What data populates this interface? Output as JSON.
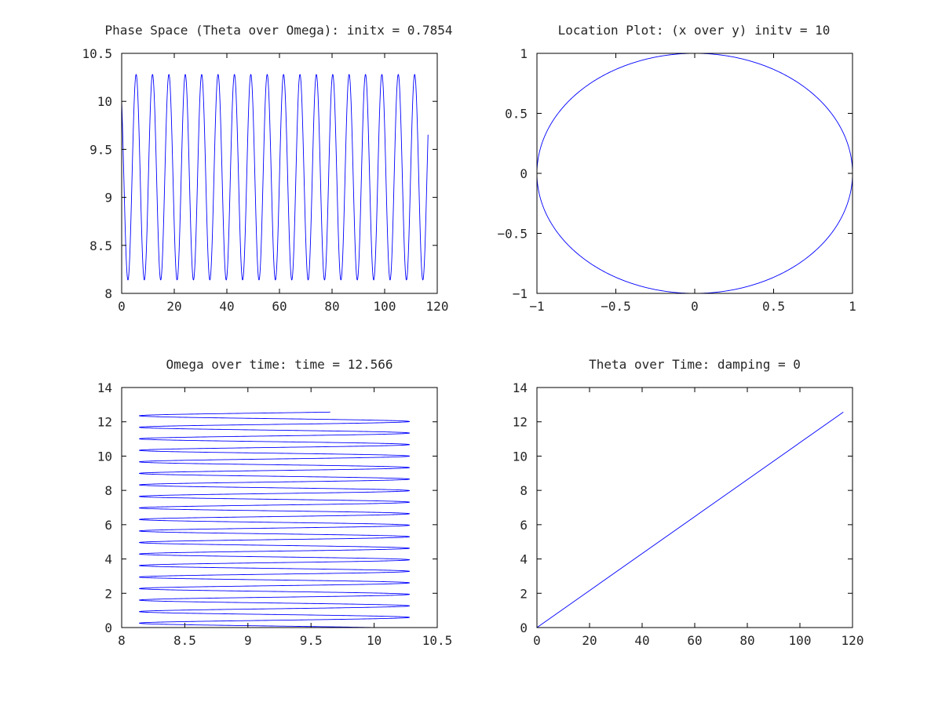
{
  "colors": {
    "series": "#0000ff",
    "axes": "#000000",
    "text": "#262626"
  },
  "chart_data": [
    {
      "id": "phase-space",
      "type": "line",
      "title": "Phase Space (Theta over Omega): initx = 0.7854",
      "xlabel": "",
      "ylabel": "",
      "xlim": [
        0,
        120
      ],
      "ylim": [
        8,
        10.5
      ],
      "xticks": [
        0,
        20,
        40,
        60,
        80,
        100,
        120
      ],
      "xtick_labels": [
        "0",
        "20",
        "40",
        "60",
        "80",
        "100",
        "120"
      ],
      "yticks": [
        8,
        8.5,
        9,
        9.5,
        10,
        10.5
      ],
      "ytick_labels": [
        "8",
        "8.5",
        "9",
        "9.5",
        "10",
        "10.5"
      ],
      "series": [
        {
          "kind": "oscillation",
          "x_start": 0,
          "x_end": 116.5,
          "y_min": 8.14,
          "y_max": 10.28,
          "y_start": 10.0,
          "periods": 18.7
        }
      ]
    },
    {
      "id": "location",
      "type": "line",
      "title": "Location Plot: (x over y) initv = 10",
      "xlabel": "",
      "ylabel": "",
      "xlim": [
        -1,
        1
      ],
      "ylim": [
        -1,
        1
      ],
      "xticks": [
        -1,
        -0.5,
        0,
        0.5,
        1
      ],
      "xtick_labels": [
        "−1",
        "−0.5",
        "0",
        "0.5",
        "1"
      ],
      "yticks": [
        -1,
        -0.5,
        0,
        0.5,
        1
      ],
      "ytick_labels": [
        "−1",
        "−0.5",
        "0",
        "0.5",
        "1"
      ],
      "series": [
        {
          "kind": "circle",
          "cx": 0,
          "cy": 0,
          "r": 1
        }
      ]
    },
    {
      "id": "omega-time",
      "type": "line",
      "title": "Omega over time: time = 12.566",
      "xlabel": "",
      "ylabel": "",
      "xlim": [
        8,
        10.5
      ],
      "ylim": [
        0,
        14
      ],
      "xticks": [
        8,
        8.5,
        9,
        9.5,
        10,
        10.5
      ],
      "xtick_labels": [
        "8",
        "8.5",
        "9",
        "9.5",
        "10",
        "10.5"
      ],
      "yticks": [
        0,
        2,
        4,
        6,
        8,
        10,
        12,
        14
      ],
      "ytick_labels": [
        "0",
        "2",
        "4",
        "6",
        "8",
        "10",
        "12",
        "14"
      ],
      "series": [
        {
          "kind": "zigzag",
          "x_min": 8.14,
          "x_max": 10.28,
          "x_start": 10.0,
          "y_start": 0,
          "y_end": 12.566,
          "periods": 18.7
        }
      ]
    },
    {
      "id": "theta-time",
      "type": "line",
      "title": "Theta over Time: damping = 0",
      "xlabel": "",
      "ylabel": "",
      "xlim": [
        0,
        120
      ],
      "ylim": [
        0,
        14
      ],
      "xticks": [
        0,
        20,
        40,
        60,
        80,
        100,
        120
      ],
      "xtick_labels": [
        "0",
        "20",
        "40",
        "60",
        "80",
        "100",
        "120"
      ],
      "yticks": [
        0,
        2,
        4,
        6,
        8,
        10,
        12,
        14
      ],
      "ytick_labels": [
        "0",
        "2",
        "4",
        "6",
        "8",
        "10",
        "12",
        "14"
      ],
      "series": [
        {
          "kind": "linear",
          "x": [
            0,
            116.5
          ],
          "y": [
            0,
            12.566
          ]
        }
      ]
    }
  ]
}
